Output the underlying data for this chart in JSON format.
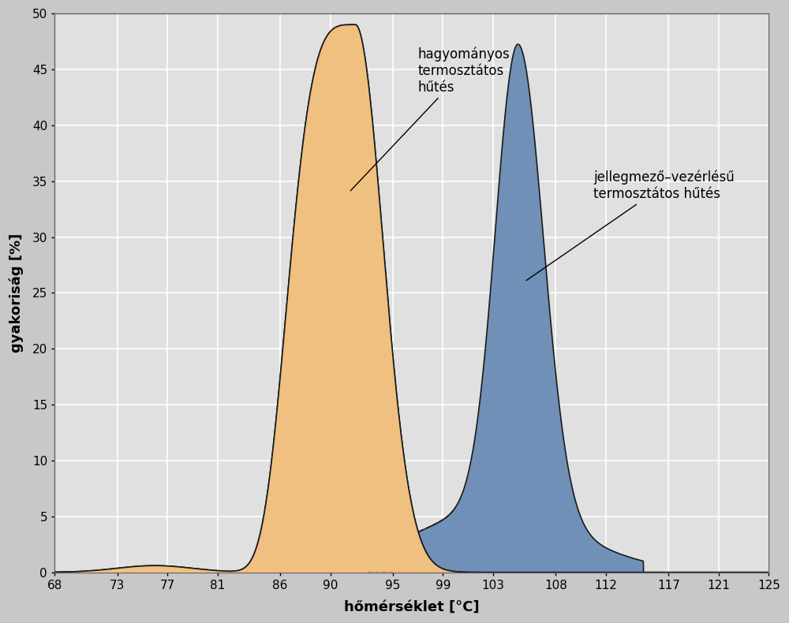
{
  "xlabel": "hőmérséklet [°C]",
  "ylabel": "gyakoriság [%]",
  "xlim": [
    68,
    125
  ],
  "ylim": [
    0,
    50
  ],
  "xticks": [
    68,
    73,
    77,
    81,
    86,
    90,
    95,
    99,
    103,
    108,
    112,
    117,
    121,
    125
  ],
  "yticks": [
    0,
    5,
    10,
    15,
    20,
    25,
    30,
    35,
    40,
    45,
    50
  ],
  "bg_color": "#c8c8c8",
  "plot_bg_color": "#e0e0e0",
  "orange_fill": "#f0c080",
  "orange_edge": "#1a1a1a",
  "blue_fill": "#7090b8",
  "blue_edge": "#1a1a1a",
  "label1": "hagyományos\ntermosztátos\nhűtés",
  "label2": "jellegmező–vezérlésű\ntermosztátos hűtés"
}
